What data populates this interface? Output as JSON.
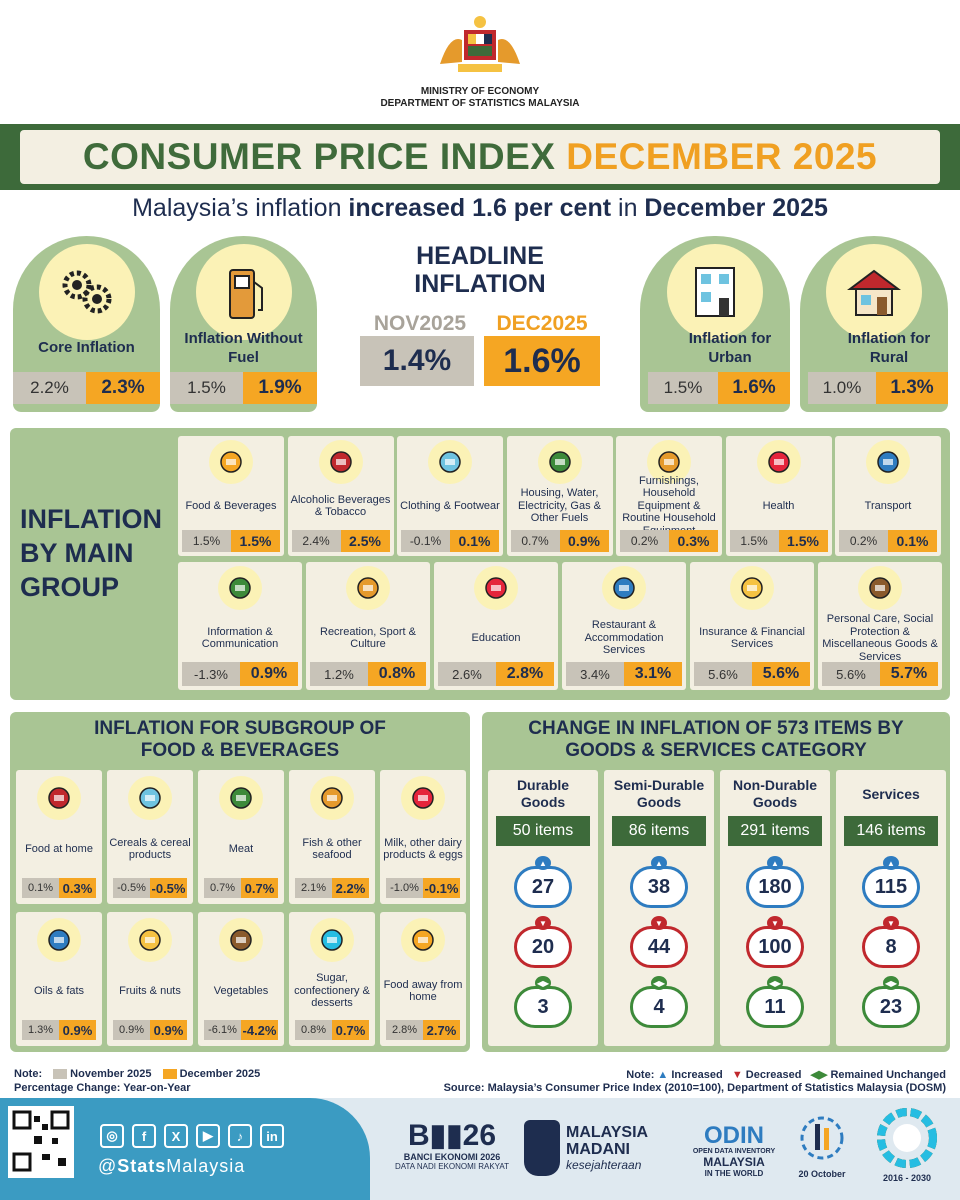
{
  "header": {
    "ministry": "MINISTRY OF ECONOMY",
    "department": "DEPARTMENT OF STATISTICS MALAYSIA",
    "title_main": "CONSUMER PRICE INDEX ",
    "title_month": "DECEMBER 2025",
    "subtitle_pre": "Malaysia’s inflation ",
    "subtitle_bold": "increased 1.6 per cent",
    "subtitle_mid": " in ",
    "subtitle_end": "December 2025"
  },
  "headline": {
    "title_line1": "HEADLINE",
    "title_line2": "INFLATION",
    "prev_label": "NOV2025",
    "curr_label": "DEC2025",
    "prev_value": "1.4%",
    "curr_value": "1.6%"
  },
  "top_cards": [
    {
      "label": "Core Inflation",
      "prev": "2.2%",
      "curr": "2.3%",
      "icon": "gears-icon"
    },
    {
      "label": "Inflation Without Fuel",
      "prev": "1.5%",
      "curr": "1.9%",
      "icon": "fuel-pump-icon"
    },
    {
      "label": "Inflation for Urban",
      "prev": "1.5%",
      "curr": "1.6%",
      "icon": "apartment-icon"
    },
    {
      "label": "Inflation for Rural",
      "prev": "1.0%",
      "curr": "1.3%",
      "icon": "house-icon"
    }
  ],
  "main_group": {
    "title": "INFLATION BY MAIN GROUP",
    "row1": [
      {
        "name": "Food & Beverages",
        "prev": "1.5%",
        "curr": "1.5%",
        "icon": "food-icon"
      },
      {
        "name": "Alcoholic Beverages & Tobacco",
        "prev": "2.4%",
        "curr": "2.5%",
        "icon": "bottle-icon"
      },
      {
        "name": "Clothing & Footwear",
        "prev": "-0.1%",
        "curr": "0.1%",
        "icon": "clothing-icon"
      },
      {
        "name": "Housing, Water, Electricity, Gas & Other Fuels",
        "prev": "0.7%",
        "curr": "0.9%",
        "icon": "housing-icon"
      },
      {
        "name": "Furnishings, Household Equipment & Routine Household Equipment",
        "prev": "0.2%",
        "curr": "0.3%",
        "icon": "furniture-icon"
      },
      {
        "name": "Health",
        "prev": "1.5%",
        "curr": "1.5%",
        "icon": "health-icon"
      },
      {
        "name": "Transport",
        "prev": "0.2%",
        "curr": "0.1%",
        "icon": "car-icon"
      }
    ],
    "row2": [
      {
        "name": "Information & Communication",
        "prev": "-1.3%",
        "curr": "0.9%",
        "icon": "phone-icon"
      },
      {
        "name": "Recreation, Sport & Culture",
        "prev": "1.2%",
        "curr": "0.8%",
        "icon": "dumbbell-icon"
      },
      {
        "name": "Education",
        "prev": "2.6%",
        "curr": "2.8%",
        "icon": "graduation-cap-icon"
      },
      {
        "name": "Restaurant & Accommodation Services",
        "prev": "3.4%",
        "curr": "3.1%",
        "icon": "restaurant-icon"
      },
      {
        "name": "Insurance & Financial Services",
        "prev": "5.6%",
        "curr": "5.6%",
        "icon": "insurance-icon"
      },
      {
        "name": "Personal Care, Social Protection & Miscellaneous Goods & Services",
        "prev": "5.6%",
        "curr": "5.7%",
        "icon": "personal-care-icon"
      }
    ]
  },
  "food_subgroup": {
    "title_line1": "INFLATION FOR SUBGROUP OF",
    "title_line2": "FOOD & BEVERAGES",
    "items": [
      {
        "name": "Food at home",
        "prev": "0.1%",
        "curr": "0.3%",
        "icon": "pot-icon"
      },
      {
        "name": "Cereals & cereal products",
        "prev": "-0.5%",
        "curr": "-0.5%",
        "icon": "cereal-icon"
      },
      {
        "name": "Meat",
        "prev": "0.7%",
        "curr": "0.7%",
        "icon": "meat-icon"
      },
      {
        "name": "Fish & other seafood",
        "prev": "2.1%",
        "curr": "2.2%",
        "icon": "crab-icon"
      },
      {
        "name": "Milk, other dairy products & eggs",
        "prev": "-1.0%",
        "curr": "-0.1%",
        "icon": "milk-icon"
      },
      {
        "name": "Oils & fats",
        "prev": "1.3%",
        "curr": "0.9%",
        "icon": "oil-icon"
      },
      {
        "name": "Fruits & nuts",
        "prev": "0.9%",
        "curr": "0.9%",
        "icon": "apple-icon"
      },
      {
        "name": "Vegetables",
        "prev": "-6.1%",
        "curr": "-4.2%",
        "icon": "vegetable-icon"
      },
      {
        "name": "Sugar, confectionery & desserts",
        "prev": "0.8%",
        "curr": "0.7%",
        "icon": "candy-icon"
      },
      {
        "name": "Food away from home",
        "prev": "2.8%",
        "curr": "2.7%",
        "icon": "takeaway-icon"
      }
    ]
  },
  "items_change": {
    "title_line1": "CHANGE IN INFLATION OF 573 ITEMS BY",
    "title_line2": "GOODS & SERVICES CATEGORY",
    "columns": [
      {
        "name_line1": "Durable",
        "name_line2": "Goods",
        "items": "50 items",
        "increased": "27",
        "decreased": "20",
        "unchanged": "3"
      },
      {
        "name_line1": "Semi-Durable",
        "name_line2": "Goods",
        "items": "86 items",
        "increased": "38",
        "decreased": "44",
        "unchanged": "4"
      },
      {
        "name_line1": "Non-Durable",
        "name_line2": "Goods",
        "items": "291 items",
        "increased": "180",
        "decreased": "100",
        "unchanged": "11"
      },
      {
        "name_line1": "Services",
        "name_line2": "",
        "items": "146 items",
        "increased": "115",
        "decreased": "8",
        "unchanged": "23"
      }
    ]
  },
  "notes": {
    "note_label": "Note:",
    "nov_label": "November 2025",
    "dec_label": "December 2025",
    "pct_change": "Percentage Change: Year-on-Year",
    "increased": "Increased",
    "decreased": "Decreased",
    "unchanged": "Remained Unchanged",
    "source": "Source: Malaysia’s Consumer Price Index (2010=100), Department of Statistics Malaysia (DOSM)"
  },
  "footer": {
    "handle_pre": "@",
    "handle_bold": "Stats",
    "handle_rest": "Malaysia",
    "banci_title": "BANCI EKONOMI 2026",
    "banci_sub": "DATA NADI EKONOMI RAKYAT",
    "madani1": "MALAYSIA",
    "madani2": "MADANI",
    "madani3": "kesejahteraan",
    "odin1": "ODIN",
    "odin2": "OPEN DATA INVENTORY",
    "odin3": "MALAYSIA",
    "odin4": "IN THE WORLD",
    "date_label": "20 October",
    "sdg_years": "2016 - 2030"
  },
  "colors": {
    "green": "#3d6a3a",
    "light_green": "#a9c594",
    "cream": "#f3efe2",
    "orange": "#f5a623",
    "grey": "#c8c3b8",
    "navy": "#1e2d4f",
    "increase": "#2e7cc0",
    "decrease": "#c0282d",
    "unchanged": "#3d8a3a"
  }
}
